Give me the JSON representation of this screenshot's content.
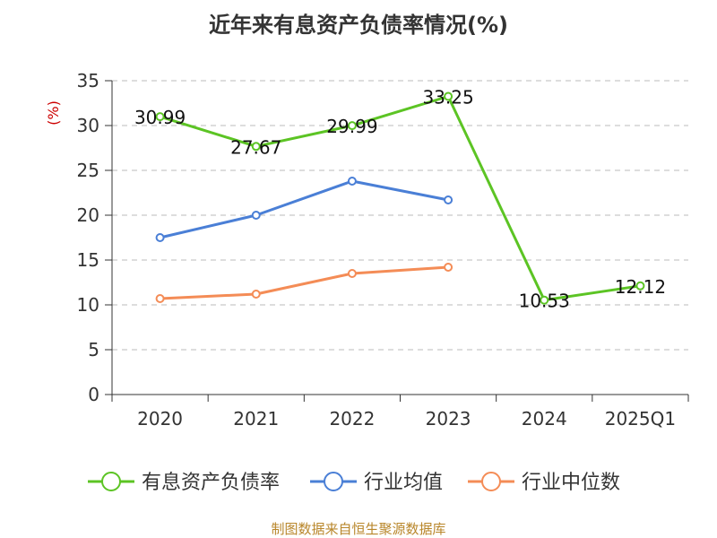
{
  "colors": {
    "title": "#333333",
    "axis": "#333333",
    "grid": "#bbbbbb",
    "unit": "#cc0000",
    "source": "#b8862a"
  },
  "chart_data": {
    "type": "line",
    "title": "近年来有息资产负债率情况(%)",
    "ylabel": "(%)",
    "categories": [
      "2020",
      "2021",
      "2022",
      "2023",
      "2024",
      "2025Q1"
    ],
    "ylim": [
      0,
      35
    ],
    "yticks": [
      "0",
      "5",
      "10",
      "15",
      "20",
      "25",
      "30",
      "35"
    ],
    "grid": true,
    "legend_position": "bottom",
    "series": [
      {
        "name": "有息资产负债率",
        "color": "#5cc424",
        "values": [
          30.99,
          27.67,
          29.99,
          33.25,
          10.53,
          12.12
        ],
        "labels": [
          "30.99",
          "27.67",
          "29.99",
          "33.25",
          "10.53",
          "12.12"
        ]
      },
      {
        "name": "行业均值",
        "color": "#4a7fd6",
        "values": [
          17.5,
          20.0,
          23.8,
          21.7,
          null,
          null
        ]
      },
      {
        "name": "行业中位数",
        "color": "#f48c56",
        "values": [
          10.7,
          11.2,
          13.5,
          14.2,
          null,
          null
        ]
      }
    ]
  },
  "source_note": "制图数据来自恒生聚源数据库"
}
